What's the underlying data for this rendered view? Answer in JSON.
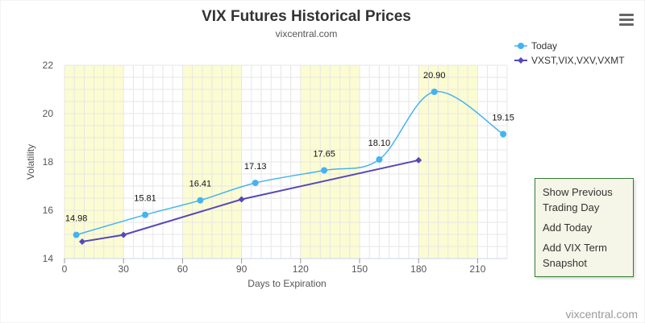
{
  "chart_data": {
    "type": "line",
    "title": "VIX Futures Historical Prices",
    "subtitle": "vixcentral.com",
    "xlabel": "Days to Expiration",
    "ylabel": "Volatility",
    "xlim": [
      0,
      225
    ],
    "ylim": [
      14,
      22
    ],
    "xticks": [
      0,
      30,
      60,
      90,
      120,
      150,
      180,
      210
    ],
    "yticks": [
      14,
      16,
      18,
      20,
      22
    ],
    "grid": true,
    "legend_position": "top-right",
    "shaded_x_bands": [
      [
        0,
        30
      ],
      [
        60,
        90
      ],
      [
        120,
        150
      ],
      [
        180,
        210
      ]
    ],
    "series": [
      {
        "name": "Today",
        "color": "#44b3f0",
        "marker": "circle",
        "smooth": true,
        "x": [
          6,
          41,
          69,
          97,
          132,
          160,
          188,
          223
        ],
        "y": [
          14.98,
          15.81,
          16.41,
          17.13,
          17.65,
          18.1,
          20.9,
          19.15
        ],
        "labels": [
          "14.98",
          "15.81",
          "16.41",
          "17.13",
          "17.65",
          "18.10",
          "20.90",
          "19.15"
        ]
      },
      {
        "name": "VXST,VIX,VXV,VXMT",
        "color": "#5549b8",
        "marker": "diamond",
        "smooth": false,
        "x": [
          9,
          30,
          90,
          180
        ],
        "y": [
          14.7,
          14.98,
          16.45,
          18.07
        ]
      }
    ]
  },
  "credits": "vixcentral.com",
  "menu": {
    "icon": "hamburger-menu-icon",
    "items": [
      "Show Previous Trading Day",
      "Add Today",
      "Add VIX Term Snapshot"
    ]
  },
  "colors": {
    "band": "#fcfcd2",
    "grid": "#e6e6e6",
    "menu_border": "#2e7d32",
    "menu_bg": "#f6f6e8"
  }
}
